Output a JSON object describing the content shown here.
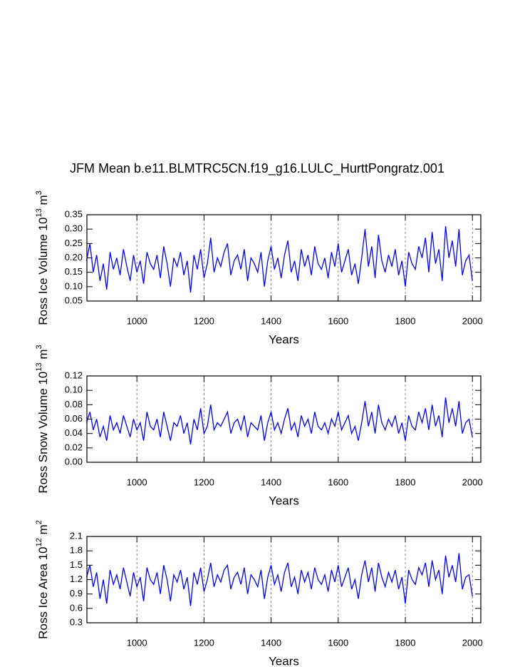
{
  "title": "JFM Mean b.e11.BLMTRC5CN.f19_g16.LULC_HurttPongratz.001",
  "chart_data": [
    {
      "type": "line",
      "xlabel": "Years",
      "ylabel_parts": [
        "Ross Ice Volume 10",
        "13",
        " m",
        "3"
      ],
      "xlim": [
        851,
        2025
      ],
      "xticks": [
        1000,
        1200,
        1400,
        1600,
        1800,
        2000
      ],
      "grid": true,
      "ylim": [
        0.05,
        0.35
      ],
      "yticks": [
        0.05,
        {
          "value": 0.1,
          "label": "0.10"
        },
        0.15,
        {
          "value": 0.2,
          "label": "0.20"
        },
        0.25,
        {
          "value": 0.3,
          "label": "0.30"
        },
        0.35
      ],
      "x": [
        850,
        860,
        870,
        880,
        890,
        900,
        910,
        920,
        930,
        940,
        950,
        960,
        970,
        980,
        990,
        1000,
        1010,
        1020,
        1030,
        1040,
        1050,
        1060,
        1070,
        1080,
        1090,
        1100,
        1110,
        1120,
        1130,
        1140,
        1150,
        1160,
        1170,
        1180,
        1190,
        1200,
        1210,
        1220,
        1230,
        1240,
        1250,
        1260,
        1270,
        1280,
        1290,
        1300,
        1310,
        1320,
        1330,
        1340,
        1350,
        1360,
        1370,
        1380,
        1390,
        1400,
        1410,
        1420,
        1430,
        1440,
        1450,
        1460,
        1470,
        1480,
        1490,
        1500,
        1510,
        1520,
        1530,
        1540,
        1550,
        1560,
        1570,
        1580,
        1590,
        1600,
        1610,
        1620,
        1630,
        1640,
        1650,
        1660,
        1670,
        1680,
        1690,
        1700,
        1710,
        1720,
        1730,
        1740,
        1750,
        1760,
        1770,
        1780,
        1790,
        1800,
        1810,
        1820,
        1830,
        1840,
        1850,
        1860,
        1870,
        1880,
        1890,
        1900,
        1910,
        1920,
        1930,
        1940,
        1950,
        1960,
        1970,
        1980,
        1990,
        2000
      ],
      "series": [
        {
          "color": "#0000ff",
          "values": [
            0.19,
            0.25,
            0.15,
            0.21,
            0.12,
            0.18,
            0.09,
            0.22,
            0.16,
            0.2,
            0.14,
            0.23,
            0.17,
            0.12,
            0.21,
            0.15,
            0.19,
            0.11,
            0.22,
            0.18,
            0.16,
            0.21,
            0.13,
            0.24,
            0.18,
            0.1,
            0.2,
            0.17,
            0.22,
            0.14,
            0.19,
            0.08,
            0.21,
            0.16,
            0.23,
            0.13,
            0.18,
            0.27,
            0.15,
            0.2,
            0.17,
            0.22,
            0.25,
            0.14,
            0.19,
            0.21,
            0.16,
            0.23,
            0.12,
            0.2,
            0.18,
            0.15,
            0.22,
            0.1,
            0.19,
            0.24,
            0.16,
            0.2,
            0.13,
            0.21,
            0.26,
            0.15,
            0.19,
            0.12,
            0.23,
            0.17,
            0.21,
            0.14,
            0.24,
            0.18,
            0.16,
            0.2,
            0.13,
            0.22,
            0.17,
            0.25,
            0.15,
            0.19,
            0.23,
            0.14,
            0.18,
            0.11,
            0.2,
            0.3,
            0.17,
            0.24,
            0.13,
            0.28,
            0.19,
            0.15,
            0.21,
            0.17,
            0.23,
            0.14,
            0.19,
            0.1,
            0.22,
            0.18,
            0.16,
            0.24,
            0.2,
            0.27,
            0.15,
            0.29,
            0.18,
            0.23,
            0.12,
            0.31,
            0.2,
            0.26,
            0.17,
            0.3,
            0.14,
            0.19,
            0.21,
            0.12
          ]
        }
      ]
    },
    {
      "type": "line",
      "xlabel": "Years",
      "ylabel_parts": [
        "Ross Snow Volume 10",
        "13",
        " m",
        "3"
      ],
      "xlim": [
        851,
        2025
      ],
      "xticks": [
        1000,
        1200,
        1400,
        1600,
        1800,
        2000
      ],
      "grid": true,
      "ylim": [
        0,
        0.12
      ],
      "yticks": [
        {
          "value": 0,
          "label": "0.00"
        },
        0.02,
        0.04,
        0.06,
        0.08,
        {
          "value": 0.1,
          "label": "0.10"
        },
        0.12
      ],
      "x": [
        850,
        860,
        870,
        880,
        890,
        900,
        910,
        920,
        930,
        940,
        950,
        960,
        970,
        980,
        990,
        1000,
        1010,
        1020,
        1030,
        1040,
        1050,
        1060,
        1070,
        1080,
        1090,
        1100,
        1110,
        1120,
        1130,
        1140,
        1150,
        1160,
        1170,
        1180,
        1190,
        1200,
        1210,
        1220,
        1230,
        1240,
        1250,
        1260,
        1270,
        1280,
        1290,
        1300,
        1310,
        1320,
        1330,
        1340,
        1350,
        1360,
        1370,
        1380,
        1390,
        1400,
        1410,
        1420,
        1430,
        1440,
        1450,
        1460,
        1470,
        1480,
        1490,
        1500,
        1510,
        1520,
        1530,
        1540,
        1550,
        1560,
        1570,
        1580,
        1590,
        1600,
        1610,
        1620,
        1630,
        1640,
        1650,
        1660,
        1670,
        1680,
        1690,
        1700,
        1710,
        1720,
        1730,
        1740,
        1750,
        1760,
        1770,
        1780,
        1790,
        1800,
        1810,
        1820,
        1830,
        1840,
        1850,
        1860,
        1870,
        1880,
        1890,
        1900,
        1910,
        1920,
        1930,
        1940,
        1950,
        1960,
        1970,
        1980,
        1990,
        2000
      ],
      "series": [
        {
          "color": "#0000ff",
          "values": [
            0.055,
            0.07,
            0.045,
            0.06,
            0.035,
            0.05,
            0.03,
            0.065,
            0.045,
            0.055,
            0.04,
            0.065,
            0.05,
            0.035,
            0.06,
            0.045,
            0.055,
            0.03,
            0.07,
            0.05,
            0.045,
            0.06,
            0.035,
            0.07,
            0.05,
            0.03,
            0.055,
            0.05,
            0.065,
            0.04,
            0.055,
            0.025,
            0.06,
            0.045,
            0.075,
            0.04,
            0.05,
            0.08,
            0.045,
            0.055,
            0.05,
            0.06,
            0.07,
            0.04,
            0.055,
            0.06,
            0.045,
            0.065,
            0.035,
            0.055,
            0.05,
            0.045,
            0.065,
            0.03,
            0.055,
            0.07,
            0.045,
            0.055,
            0.04,
            0.06,
            0.075,
            0.045,
            0.055,
            0.035,
            0.065,
            0.05,
            0.06,
            0.04,
            0.07,
            0.05,
            0.045,
            0.055,
            0.04,
            0.06,
            0.05,
            0.07,
            0.045,
            0.055,
            0.065,
            0.04,
            0.05,
            0.03,
            0.055,
            0.085,
            0.05,
            0.07,
            0.04,
            0.08,
            0.055,
            0.045,
            0.06,
            0.05,
            0.065,
            0.04,
            0.055,
            0.03,
            0.065,
            0.05,
            0.045,
            0.07,
            0.055,
            0.075,
            0.045,
            0.08,
            0.05,
            0.065,
            0.035,
            0.09,
            0.055,
            0.075,
            0.05,
            0.085,
            0.04,
            0.055,
            0.06,
            0.035
          ]
        }
      ]
    },
    {
      "type": "line",
      "xlabel": "Years",
      "ylabel_parts": [
        "Ross Ice Area 10",
        "12",
        " m",
        "2"
      ],
      "xlim": [
        851,
        2025
      ],
      "xticks": [
        1000,
        1200,
        1400,
        1600,
        1800,
        2000
      ],
      "grid": true,
      "ylim": [
        0.3,
        2.1
      ],
      "yticks": [
        0.3,
        0.6,
        0.9,
        1.2,
        1.5,
        1.8,
        2.1
      ],
      "x": [
        850,
        860,
        870,
        880,
        890,
        900,
        910,
        920,
        930,
        940,
        950,
        960,
        970,
        980,
        990,
        1000,
        1010,
        1020,
        1030,
        1040,
        1050,
        1060,
        1070,
        1080,
        1090,
        1100,
        1110,
        1120,
        1130,
        1140,
        1150,
        1160,
        1170,
        1180,
        1190,
        1200,
        1210,
        1220,
        1230,
        1240,
        1250,
        1260,
        1270,
        1280,
        1290,
        1300,
        1310,
        1320,
        1330,
        1340,
        1350,
        1360,
        1370,
        1380,
        1390,
        1400,
        1410,
        1420,
        1430,
        1440,
        1450,
        1460,
        1470,
        1480,
        1490,
        1500,
        1510,
        1520,
        1530,
        1540,
        1550,
        1560,
        1570,
        1580,
        1590,
        1600,
        1610,
        1620,
        1630,
        1640,
        1650,
        1660,
        1670,
        1680,
        1690,
        1700,
        1710,
        1720,
        1730,
        1740,
        1750,
        1760,
        1770,
        1780,
        1790,
        1800,
        1810,
        1820,
        1830,
        1840,
        1850,
        1860,
        1870,
        1880,
        1890,
        1900,
        1910,
        1920,
        1930,
        1940,
        1950,
        1960,
        1970,
        1980,
        1990,
        2000
      ],
      "series": [
        {
          "color": "#0000ff",
          "values": [
            1.25,
            1.5,
            1.05,
            1.35,
            0.8,
            1.2,
            0.7,
            1.4,
            1.1,
            1.3,
            1.0,
            1.45,
            1.15,
            0.85,
            1.35,
            1.05,
            1.25,
            0.75,
            1.45,
            1.2,
            1.1,
            1.35,
            0.9,
            1.5,
            1.2,
            0.75,
            1.3,
            1.15,
            1.4,
            1.0,
            1.25,
            0.65,
            1.35,
            1.1,
            1.45,
            0.95,
            1.2,
            1.55,
            1.05,
            1.3,
            1.15,
            1.4,
            1.5,
            1.0,
            1.25,
            1.35,
            1.1,
            1.45,
            0.9,
            1.3,
            1.2,
            1.05,
            1.4,
            0.8,
            1.25,
            1.5,
            1.1,
            1.3,
            0.95,
            1.35,
            1.55,
            1.05,
            1.25,
            0.9,
            1.4,
            1.15,
            1.35,
            1.0,
            1.45,
            1.2,
            1.1,
            1.3,
            0.95,
            1.4,
            1.15,
            1.5,
            1.05,
            1.25,
            1.45,
            1.0,
            1.2,
            0.8,
            1.3,
            1.6,
            1.15,
            1.45,
            0.95,
            1.55,
            1.25,
            1.05,
            1.35,
            1.15,
            1.4,
            1.0,
            1.25,
            0.7,
            1.4,
            1.2,
            1.1,
            1.45,
            1.3,
            1.55,
            1.05,
            1.6,
            1.2,
            1.4,
            0.9,
            1.7,
            1.25,
            1.5,
            1.15,
            1.75,
            1.0,
            1.25,
            1.3,
            0.85
          ]
        }
      ]
    }
  ]
}
